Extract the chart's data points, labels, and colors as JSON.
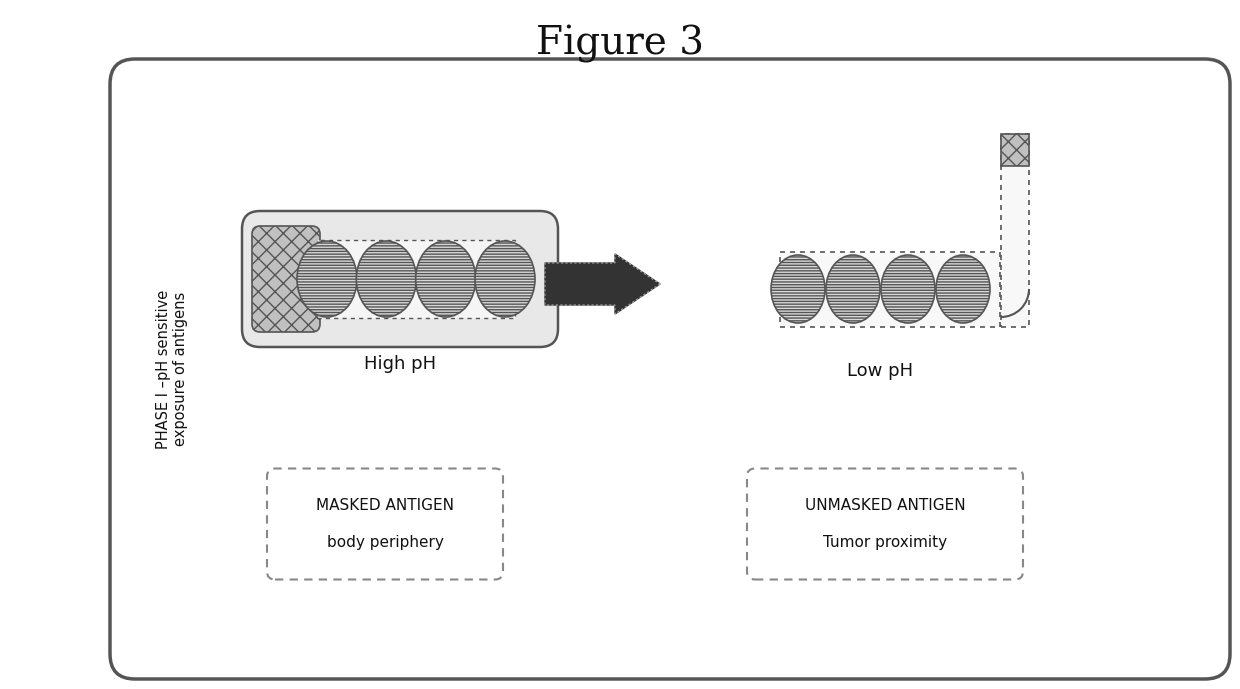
{
  "title": "Figure 3",
  "title_fontsize": 28,
  "bg_color": "#ffffff",
  "side_label": "PHASE I –pH sensitive\nexposure of antigens",
  "high_ph_label": "High pH",
  "low_ph_label": "Low pH",
  "masked_label_line1": "MASKED ANTIGEN",
  "masked_label_line2": "body periphery",
  "unmasked_label_line1": "UNMASKED ANTIGEN",
  "unmasked_label_line2": "Tumor proximity",
  "edge_color": "#555555",
  "dark_color": "#333333",
  "light_gray": "#e8e8e8",
  "mid_gray": "#c0c0c0",
  "antigen_gray": "#d8d8d8"
}
